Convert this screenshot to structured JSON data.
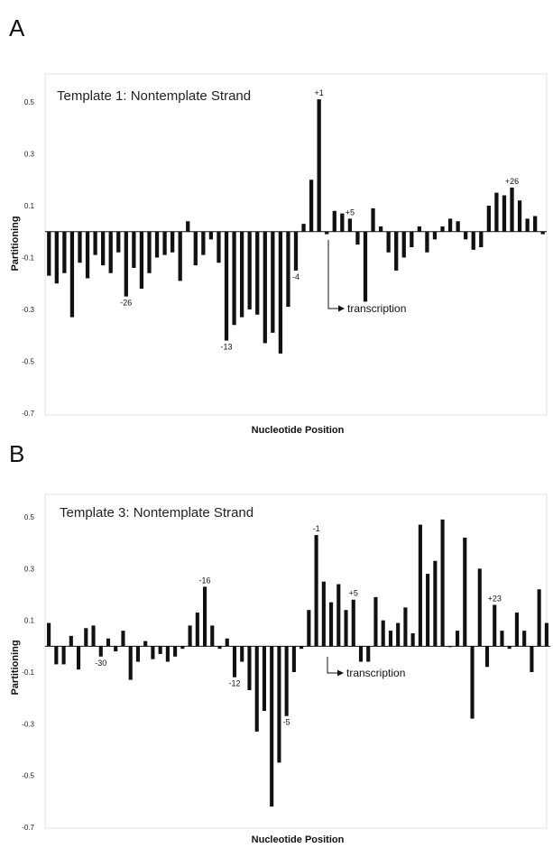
{
  "chart_data": [
    {
      "type": "bar",
      "panel": "A",
      "title": "Template 1:  Nontemplate Strand",
      "xlabel": "Nucleotide Position",
      "ylabel": "Partitioning",
      "ylim": [
        -0.7,
        0.6
      ],
      "yticks": [
        "0.5",
        "0.3",
        "0.1",
        "-0.1",
        "-0.3",
        "-0.5",
        "-0.7"
      ],
      "annotation": "transcription",
      "values": [
        -0.17,
        -0.2,
        -0.16,
        -0.33,
        -0.12,
        -0.18,
        -0.09,
        -0.13,
        -0.16,
        -0.08,
        -0.25,
        -0.14,
        -0.22,
        -0.16,
        -0.1,
        -0.09,
        -0.08,
        -0.19,
        0.04,
        -0.13,
        -0.09,
        -0.03,
        -0.12,
        -0.42,
        -0.36,
        -0.33,
        -0.3,
        -0.32,
        -0.43,
        -0.39,
        -0.47,
        -0.29,
        -0.15,
        0.03,
        0.2,
        0.51,
        -0.01,
        0.08,
        0.07,
        0.05,
        -0.05,
        -0.27,
        0.09,
        0.02,
        -0.08,
        -0.15,
        -0.1,
        -0.06,
        0.02,
        -0.08,
        -0.03,
        0.02,
        0.05,
        0.04,
        -0.03,
        -0.07,
        -0.06,
        0.1,
        0.15,
        0.14,
        0.17,
        0.12,
        0.05,
        0.06,
        -0.01
      ],
      "position_labels": [
        {
          "index": 10,
          "text": "-26"
        },
        {
          "index": 23,
          "text": "-13"
        },
        {
          "index": 32,
          "text": "-4"
        },
        {
          "index": 35,
          "text": "+1"
        },
        {
          "index": 39,
          "text": "+5"
        },
        {
          "index": 60,
          "text": "+26"
        }
      ]
    },
    {
      "type": "bar",
      "panel": "B",
      "title": "Template 3:  Nontemplate Strand",
      "xlabel": "Nucleotide Position",
      "ylabel": "Partitioning",
      "ylim": [
        -0.7,
        0.6
      ],
      "yticks": [
        "0.5",
        "0.3",
        "0.1",
        "-0.1",
        "-0.3",
        "-0.5",
        "-0.7"
      ],
      "annotation": "transcription",
      "values": [
        0.09,
        -0.07,
        -0.07,
        0.04,
        -0.09,
        0.07,
        0.08,
        -0.04,
        0.03,
        -0.02,
        0.06,
        -0.13,
        -0.06,
        0.02,
        -0.05,
        -0.03,
        -0.06,
        -0.04,
        -0.01,
        0.08,
        0.13,
        0.23,
        0.08,
        -0.01,
        0.03,
        -0.12,
        -0.06,
        -0.17,
        -0.33,
        -0.25,
        -0.62,
        -0.45,
        -0.27,
        -0.1,
        -0.01,
        0.14,
        0.43,
        0.25,
        0.17,
        0.24,
        0.14,
        0.18,
        -0.06,
        -0.06,
        0.19,
        0.1,
        0.06,
        0.09,
        0.15,
        0.05,
        0.47,
        0.28,
        0.33,
        0.49,
        0.0,
        0.06,
        0.42,
        -0.28,
        0.3,
        -0.08,
        0.16,
        0.06,
        -0.01,
        0.13,
        0.06,
        -0.1,
        0.22,
        0.09
      ],
      "position_labels": [
        {
          "index": 7,
          "text": "-30"
        },
        {
          "index": 21,
          "text": "-16"
        },
        {
          "index": 25,
          "text": "-12"
        },
        {
          "index": 32,
          "text": "-5"
        },
        {
          "index": 36,
          "text": "-1"
        },
        {
          "index": 41,
          "text": "+5"
        },
        {
          "index": 60,
          "text": "+23"
        }
      ]
    }
  ]
}
